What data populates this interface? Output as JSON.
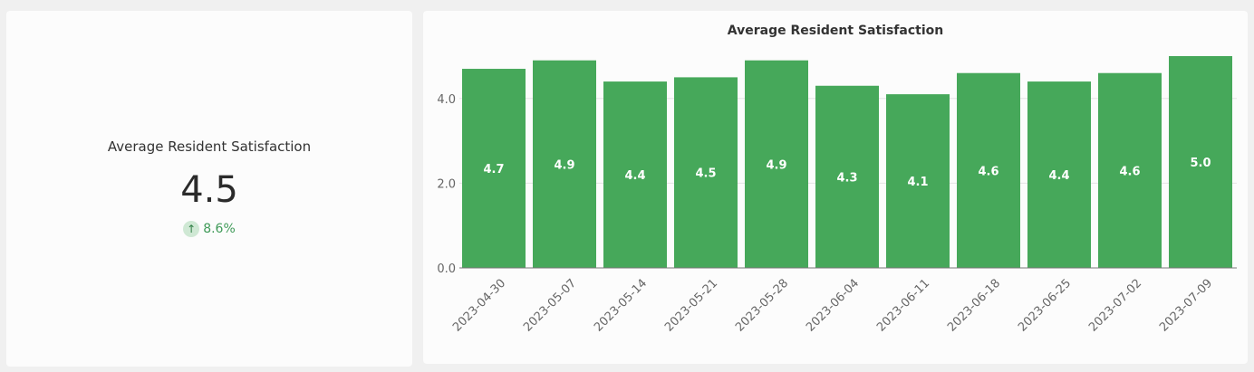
{
  "kpi": {
    "title": "Average Resident Satisfaction",
    "value": "4.5",
    "delta": "8.6%",
    "delta_icon": "arrow-up-icon",
    "delta_color": "#3f9a58"
  },
  "chart_data": {
    "type": "bar",
    "title": "Average Resident Satisfaction",
    "xlabel": "",
    "ylabel": "",
    "categories": [
      "2023-04-30",
      "2023-05-07",
      "2023-05-14",
      "2023-05-21",
      "2023-05-28",
      "2023-06-04",
      "2023-06-11",
      "2023-06-18",
      "2023-06-25",
      "2023-07-02",
      "2023-07-09"
    ],
    "values": [
      4.7,
      4.9,
      4.4,
      4.5,
      4.9,
      4.3,
      4.1,
      4.6,
      4.4,
      4.6,
      5.0
    ],
    "value_labels": [
      "4.7",
      "4.9",
      "4.4",
      "4.5",
      "4.9",
      "4.3",
      "4.1",
      "4.6",
      "4.4",
      "4.6",
      "5.0"
    ],
    "y_ticks": [
      "0.0",
      "2.0",
      "4.0"
    ],
    "ylim": [
      0,
      5.0
    ],
    "grid": true,
    "bar_color": "#46a85a"
  }
}
